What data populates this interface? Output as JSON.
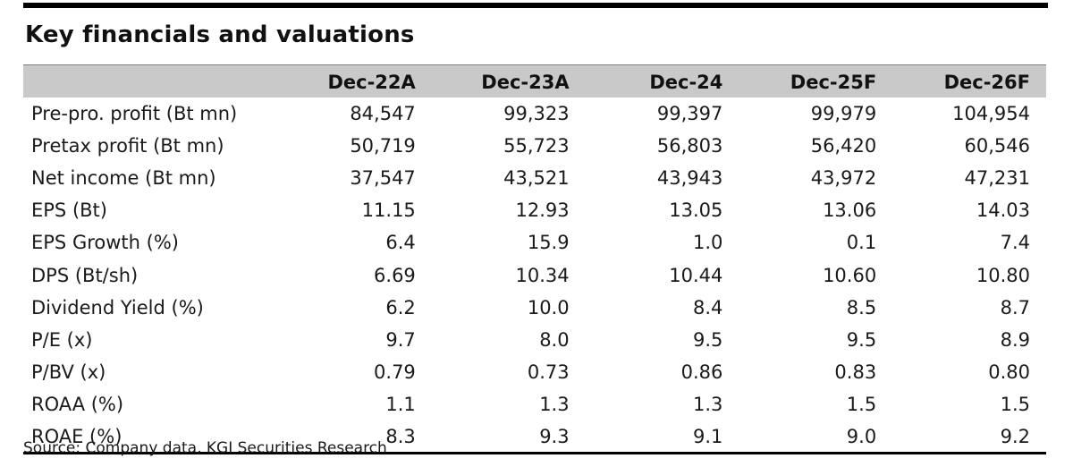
{
  "title": "Key financials and valuations",
  "table": {
    "columns": [
      "Dec-22A",
      "Dec-23A",
      "Dec-24",
      "Dec-25F",
      "Dec-26F"
    ],
    "rows": [
      {
        "label": "Pre-pro. profit (Bt mn)",
        "values": [
          "84,547",
          "99,323",
          "99,397",
          "99,979",
          "104,954"
        ]
      },
      {
        "label": "Pretax profit (Bt mn)",
        "values": [
          "50,719",
          "55,723",
          "56,803",
          "56,420",
          "60,546"
        ]
      },
      {
        "label": "Net income (Bt mn)",
        "values": [
          "37,547",
          "43,521",
          "43,943",
          "43,972",
          "47,231"
        ]
      },
      {
        "label": "EPS (Bt)",
        "values": [
          "11.15",
          "12.93",
          "13.05",
          "13.06",
          "14.03"
        ]
      },
      {
        "label": "EPS Growth (%)",
        "values": [
          "6.4",
          "15.9",
          "1.0",
          "0.1",
          "7.4"
        ]
      },
      {
        "label": "DPS (Bt/sh)",
        "values": [
          "6.69",
          "10.34",
          "10.44",
          "10.60",
          "10.80"
        ]
      },
      {
        "label": "Dividend Yield (%)",
        "values": [
          "6.2",
          "10.0",
          "8.4",
          "8.5",
          "8.7"
        ]
      },
      {
        "label": "P/E (x)",
        "values": [
          "9.7",
          "8.0",
          "9.5",
          "9.5",
          "8.9"
        ]
      },
      {
        "label": "P/BV (x)",
        "values": [
          "0.79",
          "0.73",
          "0.86",
          "0.83",
          "0.80"
        ]
      },
      {
        "label": "ROAA (%)",
        "values": [
          "1.1",
          "1.3",
          "1.3",
          "1.5",
          "1.5"
        ]
      },
      {
        "label": "ROAE (%)",
        "values": [
          "8.3",
          "9.3",
          "9.1",
          "9.0",
          "9.2"
        ]
      }
    ]
  },
  "source": "Source: Company data, KGI Securities Research"
}
